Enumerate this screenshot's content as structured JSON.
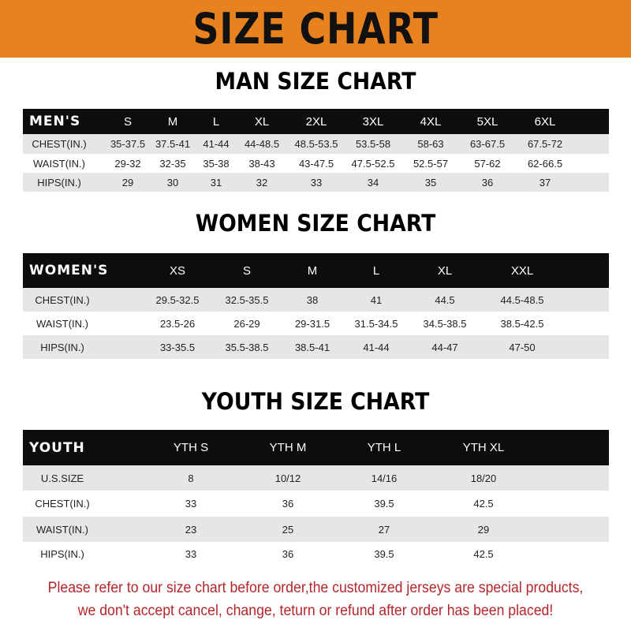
{
  "banner": {
    "title": "SIZE CHART",
    "color": "#e8821f"
  },
  "men": {
    "title": "MAN SIZE CHART",
    "header": [
      "MEN'S",
      "S",
      "M",
      "L",
      "XL",
      "2XL",
      "3XL",
      "4XL",
      "5XL",
      "6XL"
    ],
    "rows": [
      [
        "CHEST(IN.)",
        "35-37.5",
        "37.5-41",
        "41-44",
        "44-48.5",
        "48.5-53.5",
        "53.5-58",
        "58-63",
        "63-67.5",
        "67.5-72"
      ],
      [
        "WAIST(IN.)",
        "29-32",
        "32-35",
        "35-38",
        "38-43",
        "43-47.5",
        "47.5-52.5",
        "52.5-57",
        "57-62",
        "62-66.5"
      ],
      [
        "HIPS(IN.)",
        "29",
        "30",
        "31",
        "32",
        "33",
        "34",
        "35",
        "36",
        "37"
      ]
    ]
  },
  "women": {
    "title": "WOMEN SIZE CHART",
    "header": [
      "WOMEN'S",
      "XS",
      "S",
      "M",
      "L",
      "XL",
      "XXL"
    ],
    "rows": [
      [
        "CHEST(IN.)",
        "29.5-32.5",
        "32.5-35.5",
        "38",
        "41",
        "44.5",
        "44.5-48.5"
      ],
      [
        "WAIST(IN.)",
        "23.5-26",
        "26-29",
        "29-31.5",
        "31.5-34.5",
        "34.5-38.5",
        "38.5-42.5"
      ],
      [
        "HIPS(IN.)",
        "33-35.5",
        "35.5-38.5",
        "38.5-41",
        "41-44",
        "44-47",
        "47-50"
      ]
    ]
  },
  "youth": {
    "title": "YOUTH SIZE CHART",
    "header": [
      "YOUTH",
      "YTH S",
      "YTH M",
      "YTH L",
      "YTH XL"
    ],
    "rows": [
      [
        "U.S.SIZE",
        "8",
        "10/12",
        "14/16",
        "18/20"
      ],
      [
        "CHEST(IN.)",
        "33",
        "36",
        "39.5",
        "42.5"
      ],
      [
        "WAIST(IN.)",
        "23",
        "25",
        "27",
        "29"
      ],
      [
        "HIPS(IN.)",
        "33",
        "36",
        "39.5",
        "42.5"
      ]
    ]
  },
  "notice": {
    "line1": "Please refer to our size chart before order,the customized jerseys are special products,",
    "line2": "we don't accept cancel, change, teturn or refund after order has been placed!",
    "color": "#b3262b"
  }
}
